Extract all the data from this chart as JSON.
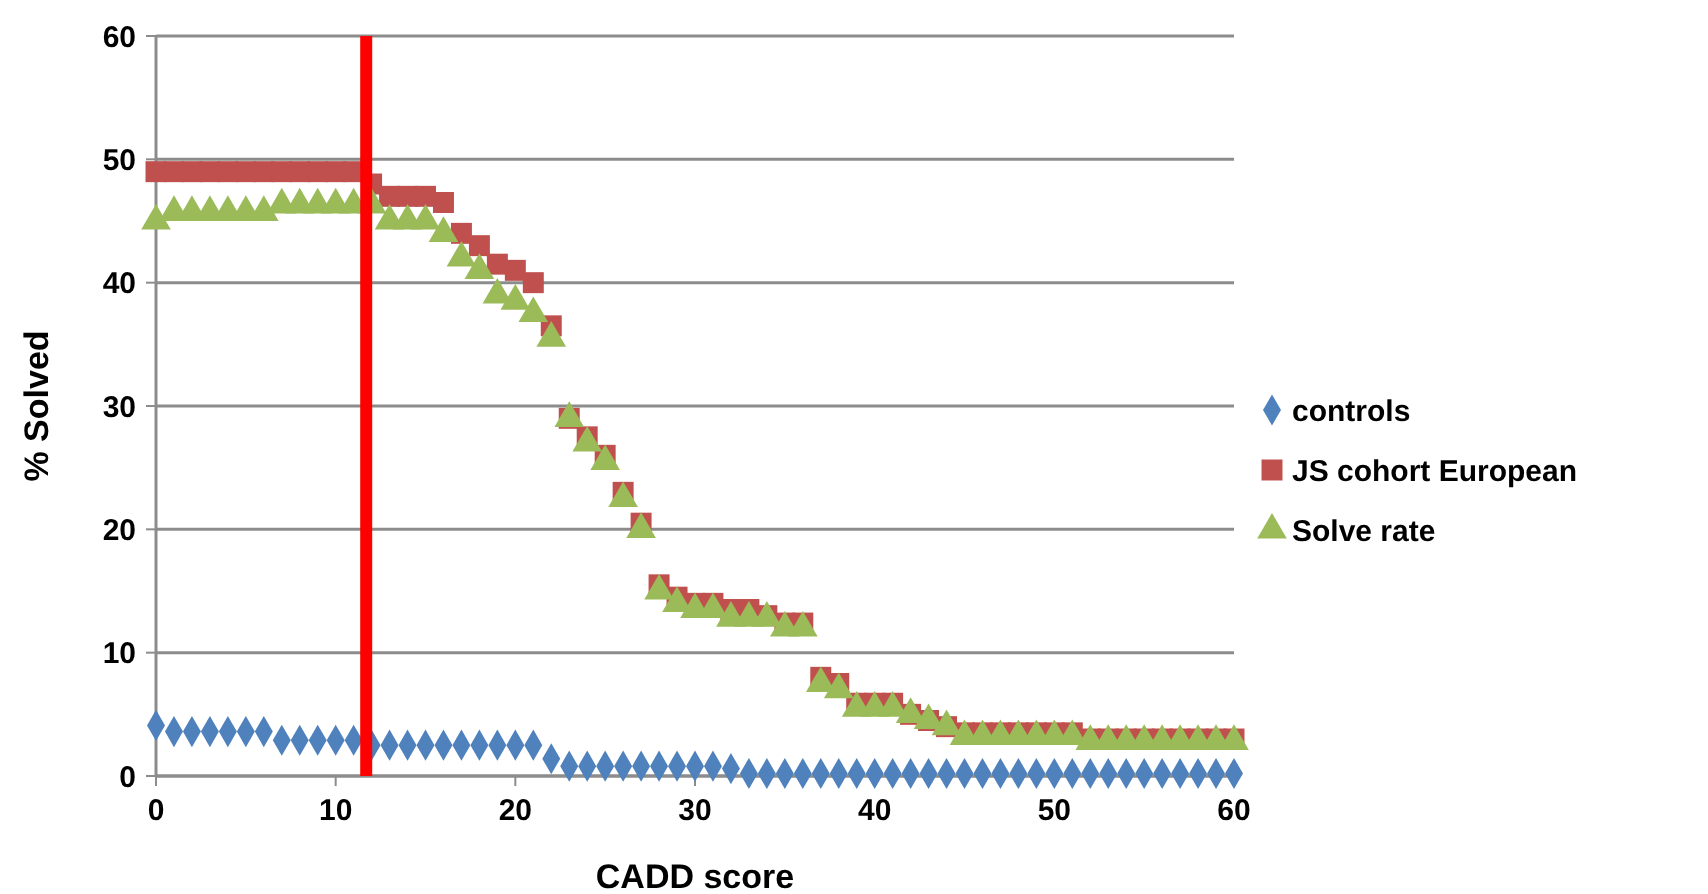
{
  "chart_data": {
    "type": "scatter",
    "xlabel": "CADD score",
    "ylabel": "% Solved",
    "x": [
      0,
      1,
      2,
      3,
      4,
      5,
      6,
      7,
      8,
      9,
      10,
      11,
      12,
      13,
      14,
      15,
      16,
      17,
      18,
      19,
      20,
      21,
      22,
      23,
      24,
      25,
      26,
      27,
      28,
      29,
      30,
      31,
      32,
      33,
      34,
      35,
      36,
      37,
      38,
      39,
      40,
      41,
      42,
      43,
      44,
      45,
      46,
      47,
      48,
      49,
      50,
      51,
      52,
      53,
      54,
      55,
      56,
      57,
      58,
      59,
      60
    ],
    "series": [
      {
        "name": "controls",
        "color": "#4f81bd",
        "marker": "diamond",
        "values": [
          4.1,
          3.6,
          3.6,
          3.6,
          3.6,
          3.6,
          3.6,
          2.9,
          2.9,
          2.9,
          2.9,
          2.9,
          2.5,
          2.5,
          2.5,
          2.5,
          2.5,
          2.5,
          2.5,
          2.5,
          2.5,
          2.5,
          1.4,
          0.8,
          0.8,
          0.8,
          0.8,
          0.8,
          0.8,
          0.8,
          0.8,
          0.8,
          0.6,
          0.2,
          0.2,
          0.2,
          0.2,
          0.2,
          0.2,
          0.2,
          0.2,
          0.2,
          0.2,
          0.2,
          0.2,
          0.2,
          0.2,
          0.2,
          0.2,
          0.2,
          0.2,
          0.2,
          0.2,
          0.2,
          0.2,
          0.2,
          0.2,
          0.2,
          0.2,
          0.2,
          0.2
        ]
      },
      {
        "name": "JS cohort European",
        "color": "#c0504d",
        "marker": "square",
        "values": [
          49,
          49,
          49,
          49,
          49,
          49,
          49,
          49,
          49,
          49,
          49,
          49,
          48,
          47,
          47,
          47,
          46.5,
          44,
          43,
          41.5,
          41,
          40,
          36.5,
          29,
          27.5,
          26,
          23,
          20.5,
          15.5,
          14.5,
          14,
          14,
          13.5,
          13.5,
          13,
          12.4,
          12.4,
          8,
          7.5,
          5.9,
          5.9,
          5.9,
          5,
          4.5,
          4,
          3.5,
          3.5,
          3.5,
          3.5,
          3.5,
          3.5,
          3.5,
          3,
          3,
          3,
          3,
          3,
          3,
          3,
          3,
          3
        ]
      },
      {
        "name": "Solve rate",
        "color": "#9bbb59",
        "marker": "triangle",
        "values": [
          45,
          45.7,
          45.7,
          45.7,
          45.7,
          45.7,
          45.7,
          46.3,
          46.3,
          46.3,
          46.3,
          46.3,
          46.3,
          45,
          45,
          45,
          44,
          42,
          41,
          39,
          38.5,
          37.5,
          35.5,
          29,
          27,
          25.5,
          22.5,
          20,
          15,
          14,
          13.5,
          13.5,
          12.8,
          12.8,
          12.8,
          12,
          12,
          7.5,
          7,
          5.5,
          5.5,
          5.5,
          5,
          4.5,
          4,
          3.2,
          3.2,
          3.2,
          3.2,
          3.2,
          3.2,
          3.2,
          2.8,
          2.8,
          2.8,
          2.8,
          2.8,
          2.8,
          2.8,
          2.8,
          2.8
        ]
      }
    ],
    "xlim": [
      0,
      60
    ],
    "xticks": [
      0,
      10,
      20,
      30,
      40,
      50,
      60
    ],
    "ylim": [
      0,
      60
    ],
    "yticks": [
      0,
      10,
      20,
      30,
      40,
      50,
      60
    ],
    "grid": "y",
    "legend": "right",
    "ref_lines": [
      {
        "axis": "x",
        "value": 11.7,
        "color": "#ff0000"
      }
    ]
  }
}
